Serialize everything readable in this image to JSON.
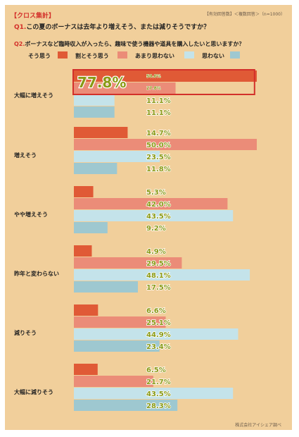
{
  "header": {
    "tag": "【クロス集計】",
    "meta": "【有効回答数】＜複数回答＞（n=1000）"
  },
  "questions": {
    "q1_prefix": "Q1.",
    "q1_text": "この夏のボーナスは去年より増えそう、または減りそうですか？",
    "q2_prefix": "Q2.",
    "q2_text": "ボーナスなど臨時収入が入ったら、趣味で使う機器や道具を購入したいと思いますか？"
  },
  "credit": "株式会社アイシェア調べ",
  "colors": {
    "sou_omou": "#e05a36",
    "yaya_sou_omou": "#eb8c78",
    "amari_omowanai": "#c4e3ea",
    "omowanai": "#9ec8d0",
    "highlight": "#d3302a",
    "value_text": "#8a9a16"
  },
  "chart_data": {
    "type": "bar",
    "orientation": "horizontal",
    "xlim": [
      0,
      64
    ],
    "categories": [
      "大幅に増えそう",
      "増えそう",
      "やや増えそう",
      "昨年と変わらない",
      "減りそう",
      "大幅に減りそう"
    ],
    "series": [
      {
        "name": "そう思う",
        "values": [
          50.0,
          14.7,
          5.3,
          4.9,
          6.6,
          6.5
        ]
      },
      {
        "name": "割とそう思う",
        "values": [
          27.8,
          50.0,
          42.0,
          29.5,
          25.1,
          21.7
        ]
      },
      {
        "name": "あまり思わない",
        "values": [
          11.1,
          23.5,
          43.5,
          48.1,
          44.9,
          43.5
        ]
      },
      {
        "name": "思わない",
        "values": [
          11.1,
          11.8,
          9.2,
          17.5,
          23.4,
          28.3
        ]
      }
    ],
    "value_labels": [
      [
        "50.0%",
        "27.8%",
        "11.1%",
        "11.1%"
      ],
      [
        "14.7%",
        "50.0%",
        "23.5%",
        "11.8%"
      ],
      [
        "5.3%",
        "42.0%",
        "43.5%",
        "9.2%"
      ],
      [
        "4.9%",
        "29.5%",
        "48.1%",
        "17.5%"
      ],
      [
        "6.6%",
        "25.1%",
        "44.9%",
        "23.4%"
      ],
      [
        "6.5%",
        "21.7%",
        "43.5%",
        "28.3%"
      ]
    ],
    "callout": {
      "category": "大幅に増えそう",
      "text": "77.8%",
      "value": 77.8
    }
  }
}
